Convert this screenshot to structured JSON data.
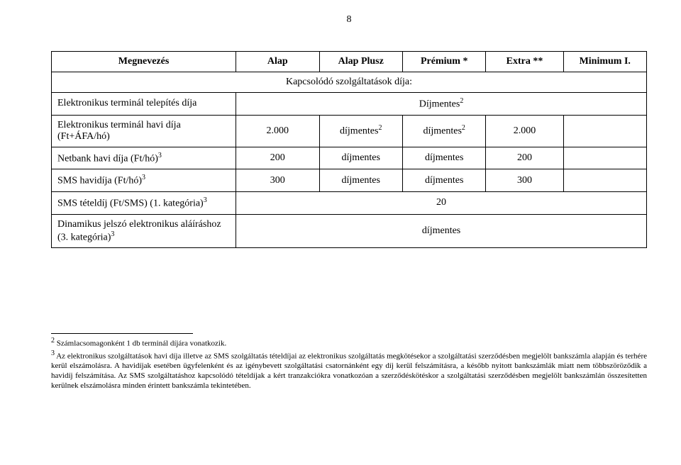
{
  "page_number": "8",
  "table": {
    "headers": [
      "Megnevezés",
      "Alap",
      "Alap Plusz",
      "Prémium *",
      "Extra **",
      "Minimum I."
    ],
    "subtitle": "Kapcsolódó szolgáltatások díja:",
    "rows": [
      {
        "label": "Elektronikus terminál telepítés díja",
        "label_sup": "",
        "span_value": "Díjmentes",
        "span_sup": "2"
      },
      {
        "label": "Elektronikus terminál havi díja (Ft+ÁFA/hó)",
        "label_sup": "",
        "c1": "2.000",
        "c2": "díjmentes",
        "c2_sup": "2",
        "c3": "díjmentes",
        "c3_sup": "2",
        "c4": "2.000",
        "c5": ""
      },
      {
        "label": "Netbank havi díja (Ft/hó)",
        "label_sup": "3",
        "c1": "200",
        "c2": "díjmentes",
        "c3": "díjmentes",
        "c4": "200",
        "c5": ""
      },
      {
        "label": "SMS havidíja (Ft/hó)",
        "label_sup": "3",
        "c1": "300",
        "c2": "díjmentes",
        "c3": "díjmentes",
        "c4": "300",
        "c5": ""
      },
      {
        "label": "SMS tételdíj (Ft/SMS) (1. kategória)",
        "label_sup": "3",
        "span_value": "20"
      },
      {
        "label": "Dinamikus jelszó elektronikus aláíráshoz (3. kategória)",
        "label_sup": "3",
        "span_value": "díjmentes"
      }
    ]
  },
  "footnotes": {
    "f2": "Számlacsomagonként 1 db terminál díjára vonatkozik.",
    "f3": "Az elektronikus szolgáltatások havi díja illetve az SMS szolgáltatás tételdíjai az elektronikus szolgáltatás megkötésekor a szolgáltatási szerződésben megjelölt bankszámla alapján és terhére kerül elszámolásra. A havidíjak esetében ügyfelenként és az igénybevett szolgáltatási csatornánként egy díj kerül felszámításra, a később nyitott bankszámlák miatt nem többszöröződik a havidíj felszámítása. Az SMS szolgáltatáshoz kapcsolódó tételdíjak a kért tranzakciókra vonatkozóan a szerződéskötéskor a szolgáltatási szerződésben megjelölt bankszámlán összesítetten kerülnek elszámolásra minden érintett bankszámla tekintetében."
  },
  "colors": {
    "background": "#ffffff",
    "text": "#000000",
    "border": "#000000"
  },
  "fonts": {
    "body_family": "Times New Roman",
    "body_size_pt": 11,
    "footnote_size_pt": 8
  }
}
